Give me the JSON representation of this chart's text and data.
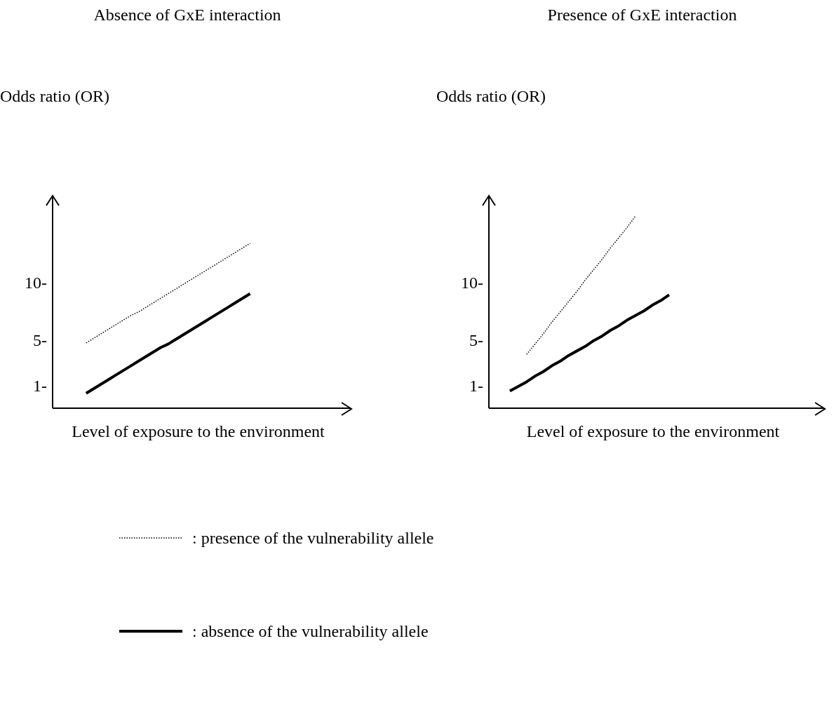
{
  "chart_data": [
    {
      "type": "line",
      "title": "Absence of GxE interaction",
      "ylabel": "Odds ratio (OR)",
      "xlabel": "Level of exposure to the environment",
      "categories": [
        null,
        null,
        null,
        null,
        null,
        null,
        null,
        null,
        null,
        null,
        null,
        null,
        null,
        null,
        null,
        null,
        null,
        null,
        null,
        null,
        null,
        null,
        null,
        null,
        null,
        null,
        null,
        null,
        null,
        null,
        null,
        null,
        null,
        null,
        null,
        null,
        null,
        null,
        null,
        null
      ],
      "series": [
        {
          "name": ": presence of the vulnerability allele",
          "color": "#000000",
          "line_style": "dotted",
          "values": [
            null,
            null,
            null,
            null,
            4.7,
            5.1,
            5.5,
            5.9,
            6.3,
            6.7,
            7.1,
            7.4,
            7.8,
            8.2,
            8.6,
            9.0,
            9.4,
            9.8,
            10.2,
            10.6,
            11.0,
            11.4,
            11.8,
            12.2,
            12.6,
            13.0,
            13.4,
            null,
            null,
            null,
            null,
            null,
            null,
            null,
            null,
            null,
            null,
            null,
            null,
            null
          ]
        },
        {
          "name": ": absence of the vulnerability allele",
          "color": "#000000",
          "line_style": "solid",
          "values": [
            null,
            null,
            null,
            null,
            0.3,
            0.7,
            1.1,
            1.5,
            1.9,
            2.3,
            2.7,
            3.1,
            3.5,
            3.9,
            4.3,
            4.6,
            5.0,
            5.4,
            5.8,
            6.2,
            6.6,
            7.0,
            7.4,
            7.8,
            8.2,
            8.6,
            9.0,
            null,
            null,
            null,
            null,
            null,
            null,
            null,
            null,
            null,
            null,
            null,
            null,
            null
          ]
        }
      ],
      "ylim": [
        -1,
        17.5
      ],
      "yticks": [
        {
          "value": 1,
          "label": "1-"
        },
        {
          "value": 5,
          "label": "5-"
        },
        {
          "value": 10,
          "label": "10-"
        }
      ],
      "tick_labels": "y",
      "legend": "bottom",
      "marker": "none",
      "grid": false
    },
    {
      "type": "line",
      "title": "Presence of GxE interaction",
      "ylabel": "Odds ratio (OR)",
      "xlabel": "Level of exposure to the environment",
      "categories": [
        null,
        null,
        null,
        null,
        null,
        null,
        null,
        null,
        null,
        null,
        null,
        null,
        null,
        null,
        null,
        null,
        null,
        null,
        null,
        null,
        null,
        null,
        null,
        null,
        null,
        null,
        null,
        null,
        null,
        null,
        null,
        null,
        null,
        null,
        null,
        null,
        null,
        null,
        null,
        null
      ],
      "series": [
        {
          "color": "#000000",
          "line_style": "dotted",
          "values": [
            null,
            null,
            null,
            null,
            3.7,
            4.6,
            5.5,
            6.5,
            7.4,
            8.3,
            9.2,
            10.2,
            11.1,
            12.0,
            13.0,
            13.9,
            14.8,
            15.8,
            null,
            null,
            null,
            null,
            null,
            null,
            null,
            null,
            null,
            null,
            null,
            null,
            null,
            null,
            null,
            null,
            null,
            null,
            null,
            null,
            null,
            null
          ]
        },
        {
          "color": "#000000",
          "line_style": "solid",
          "values": [
            null,
            null,
            0.5,
            0.9,
            1.3,
            1.8,
            2.2,
            2.7,
            3.1,
            3.6,
            4.0,
            4.4,
            4.9,
            5.3,
            5.8,
            6.2,
            6.7,
            7.1,
            7.5,
            8.0,
            8.4,
            8.9,
            null,
            null,
            null,
            null,
            null,
            null,
            null,
            null,
            null,
            null,
            null,
            null,
            null,
            null,
            null,
            null,
            null,
            null
          ]
        }
      ],
      "ylim": [
        -1,
        17.5
      ],
      "yticks": [
        {
          "value": 1,
          "label": "1-"
        },
        {
          "value": 5,
          "label": "5-"
        },
        {
          "value": 10,
          "label": "10-"
        }
      ],
      "tick_labels": "y",
      "legend": false,
      "marker": "none",
      "grid": false
    }
  ]
}
